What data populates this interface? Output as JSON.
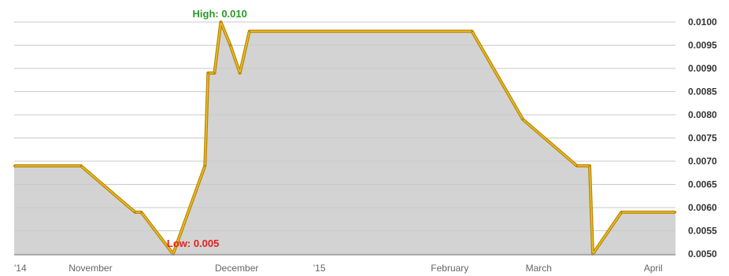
{
  "chart_data": {
    "type": "area",
    "ylim": [
      0.005,
      0.01
    ],
    "y_ticks": [
      "0.0100",
      "0.0095",
      "0.0090",
      "0.0085",
      "0.0080",
      "0.0075",
      "0.0070",
      "0.0065",
      "0.0060",
      "0.0055",
      "0.0050"
    ],
    "x_ticks": [
      "'14",
      "November",
      "December",
      "'15",
      "February",
      "March",
      "April"
    ],
    "x": [
      "2014-10-01",
      "2014-10-22",
      "2014-11-08",
      "2014-11-10",
      "2014-11-20",
      "2014-11-30",
      "2014-12-01",
      "2014-12-03",
      "2014-12-05",
      "2014-12-08",
      "2014-12-11",
      "2014-12-14",
      "2015-02-22",
      "2015-03-10",
      "2015-03-27",
      "2015-03-31",
      "2015-04-01",
      "2015-04-10",
      "2015-04-27"
    ],
    "values": [
      0.0069,
      0.0069,
      0.0059,
      0.0059,
      0.005,
      0.0069,
      0.0089,
      0.0089,
      0.01,
      0.0095,
      0.0089,
      0.0098,
      0.0098,
      0.0079,
      0.0069,
      0.0069,
      0.005,
      0.0059,
      0.0059
    ],
    "grid": true,
    "annotations": [
      {
        "type": "high",
        "label": "High: 0.010"
      },
      {
        "type": "low",
        "label": "Low: 0.005"
      }
    ],
    "colors": {
      "line": "#b8860b",
      "line_highlight": "#f0c020",
      "fill": "#d3d3d3",
      "grid": "#ffffff",
      "axis_text": "#333333"
    }
  }
}
